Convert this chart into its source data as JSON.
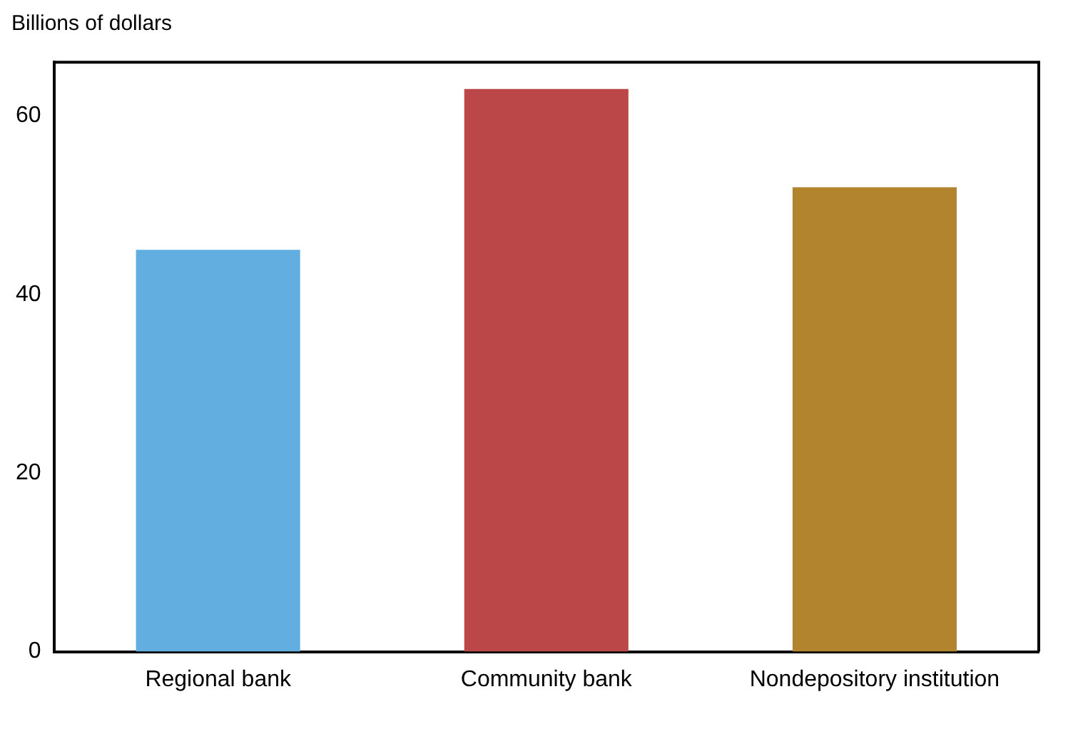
{
  "chart_data": {
    "type": "bar",
    "ylabel": "Billions of dollars",
    "categories": [
      "Regional bank",
      "Community bank",
      "Nondepository institution"
    ],
    "values": [
      45,
      63,
      52
    ],
    "colors": [
      "#62aee0",
      "#bc4749",
      "#b2842e"
    ],
    "ylim": [
      0,
      66
    ],
    "yticks": [
      0,
      20,
      40,
      60
    ],
    "grid": false,
    "legend": false
  }
}
